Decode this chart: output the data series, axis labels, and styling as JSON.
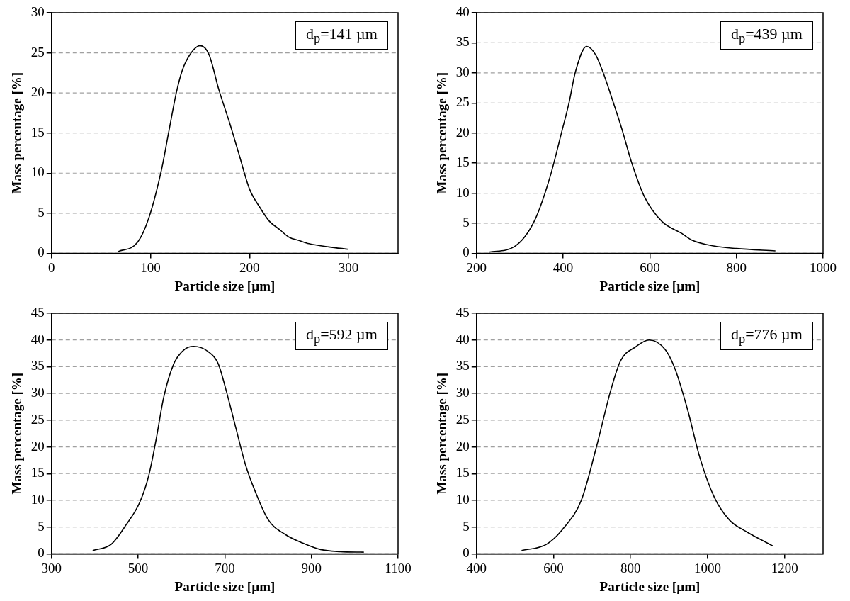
{
  "chart_data": [
    {
      "type": "line",
      "xlabel": "Particle size [µm]",
      "ylabel": "Mass percentage [%]",
      "annotations": [
        "d$_{p}$=141 µm"
      ],
      "xlim": [
        0,
        350
      ],
      "xticks": [
        0,
        100,
        200,
        300
      ],
      "ylim": [
        0,
        30
      ],
      "yticks": [
        0,
        5,
        10,
        15,
        20,
        25,
        30
      ],
      "grid": "y",
      "legend": false,
      "marker": "none",
      "line_style": "solid",
      "series": [
        {
          "color": "#000000",
          "x": [
            67,
            87,
            98.5,
            111,
            118.6,
            126,
            132,
            141,
            150,
            159,
            169,
            179,
            189,
            200,
            210,
            220,
            230,
            240,
            250,
            260,
            280,
            300
          ],
          "values": [
            0.2,
            1.4,
            4.5,
            10.4,
            15.3,
            20,
            22.8,
            25,
            25.9,
            24.8,
            20.4,
            16.6,
            12.5,
            8,
            5.8,
            4,
            3,
            2,
            1.6,
            1.2,
            0.8,
            0.5
          ]
        }
      ]
    },
    {
      "type": "line",
      "xlabel": "Particle size [µm]",
      "ylabel": "Mass percentage [%]",
      "annotations": [
        "d$_{p}$=439 µm"
      ],
      "xlim": [
        200,
        1000
      ],
      "xticks": [
        200,
        400,
        600,
        800,
        1000
      ],
      "ylim": [
        0,
        40
      ],
      "yticks": [
        0,
        5,
        10,
        15,
        20,
        25,
        30,
        35,
        40
      ],
      "grid": "y",
      "legend": false,
      "marker": "none",
      "line_style": "solid",
      "series": [
        {
          "color": "#000000",
          "x": [
            229,
            287,
            333,
            368,
            397,
            414,
            428,
            454,
            475,
            492,
            512,
            535,
            558,
            587,
            628,
            674,
            697,
            750,
            800,
            890
          ],
          "values": [
            0.2,
            1.1,
            5.3,
            12.3,
            20.3,
            25.2,
            30.1,
            34.4,
            33,
            30.1,
            25.9,
            20.8,
            15.1,
            9.5,
            5.3,
            3.3,
            2.2,
            1.2,
            0.8,
            0.4
          ]
        }
      ]
    },
    {
      "type": "line",
      "xlabel": "Particle size [µm]",
      "ylabel": "Mass percentage [%]",
      "annotations": [
        "d$_{p}$=592 µm"
      ],
      "xlim": [
        300,
        1100
      ],
      "xticks": [
        300,
        500,
        700,
        900,
        1100
      ],
      "ylim": [
        0,
        45
      ],
      "yticks": [
        0,
        5,
        10,
        15,
        20,
        25,
        30,
        35,
        40,
        45
      ],
      "grid": "y",
      "legend": false,
      "marker": "none",
      "line_style": "solid",
      "series": [
        {
          "color": "#000000",
          "x": [
            395,
            438,
            472,
            504,
            524,
            541,
            559,
            582,
            605,
            628,
            662,
            685,
            702,
            725,
            748,
            771,
            800,
            840,
            880,
            921,
            967,
            1021
          ],
          "values": [
            0.6,
            1.8,
            5.4,
            9.7,
            14.5,
            21.2,
            29.3,
            35.5,
            38.1,
            38.8,
            37.8,
            35.5,
            30.9,
            23.7,
            16.6,
            11.5,
            6.4,
            3.6,
            2,
            0.8,
            0.4,
            0.3
          ]
        }
      ]
    },
    {
      "type": "line",
      "xlabel": "Particle size [µm]",
      "ylabel": "Mass percentage [%]",
      "annotations": [
        "d$_{p}$=776 µm"
      ],
      "xlim": [
        400,
        1300
      ],
      "xticks": [
        400,
        600,
        800,
        1000,
        1200
      ],
      "ylim": [
        0,
        45
      ],
      "yticks": [
        0,
        5,
        10,
        15,
        20,
        25,
        30,
        35,
        40,
        45
      ],
      "grid": "y",
      "legend": false,
      "marker": "none",
      "line_style": "solid",
      "series": [
        {
          "color": "#000000",
          "x": [
            517,
            582,
            627,
            672,
            710,
            749,
            774,
            813,
            848,
            890,
            916,
            948,
            980,
            1018,
            1057,
            1102,
            1169
          ],
          "values": [
            0.6,
            1.8,
            4.9,
            10,
            19.6,
            30.7,
            36.1,
            38.7,
            40,
            38.2,
            34.5,
            27,
            18,
            10.5,
            6.3,
            4.1,
            1.5
          ]
        }
      ]
    }
  ]
}
